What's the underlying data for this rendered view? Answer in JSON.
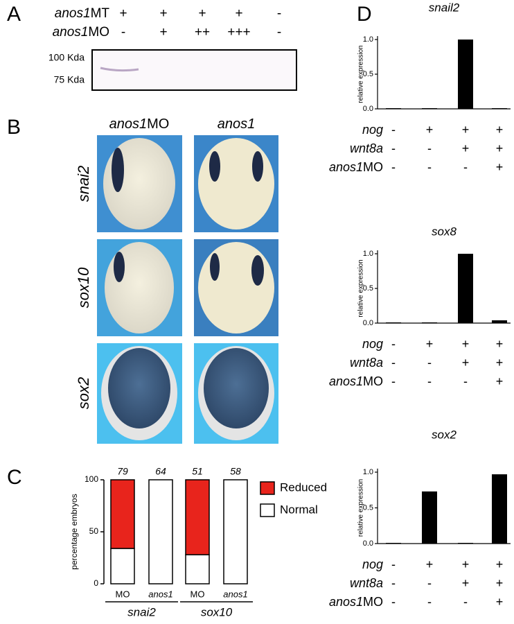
{
  "panel_a": {
    "label": "A",
    "rows": [
      {
        "name": {
          "italic": "anos1",
          "plain": "MT"
        },
        "marks": [
          "+",
          "+",
          "+",
          "+",
          "-"
        ]
      },
      {
        "name": {
          "italic": "anos1",
          "plain": "MO"
        },
        "marks": [
          "-",
          "+",
          "++",
          "+++",
          "-"
        ]
      }
    ],
    "blot_markers": [
      "100 Kda",
      "75 Kda"
    ]
  },
  "panel_b": {
    "label": "B",
    "columns": [
      {
        "italic": "anos1",
        "plain": "MO"
      },
      {
        "italic": "anos1"
      }
    ],
    "rows": [
      "snai2",
      "sox10",
      "sox2"
    ]
  },
  "chart_data": [
    {
      "type": "bar",
      "stacked": true,
      "panel_label": "C",
      "ylabel": "percentage embryos",
      "categories": [
        "MO",
        "anos1",
        "MO",
        "anos1"
      ],
      "groups": [
        "snai2",
        "sox10"
      ],
      "counts": [
        79,
        64,
        51,
        58
      ],
      "series": [
        {
          "name": "Normal",
          "color": "#ffffff",
          "values": [
            34,
            100,
            28,
            100
          ]
        },
        {
          "name": "Reduced",
          "color": "#e8241c",
          "values": [
            66,
            0,
            72,
            0
          ]
        }
      ],
      "ylim": [
        0,
        100
      ],
      "yticks": [
        0,
        50,
        100
      ]
    },
    {
      "type": "bar",
      "panel_label": "D",
      "title": "snail2",
      "ylabel": "relative expression",
      "values": [
        0.01,
        0.01,
        1.0,
        0.01
      ],
      "color": "#000000",
      "ylim": [
        0,
        1.05
      ],
      "yticks": [
        {
          "value": 0,
          "label": "0.0"
        },
        {
          "value": 0.5,
          "label": "0.5"
        },
        {
          "value": 1,
          "label": "1.0"
        }
      ],
      "conditions": [
        {
          "name": {
            "italic": "nog"
          },
          "marks": [
            "-",
            "+",
            "+",
            "+"
          ]
        },
        {
          "name": {
            "italic": "wnt8a"
          },
          "marks": [
            "-",
            "-",
            "+",
            "+"
          ]
        },
        {
          "name": {
            "italic": "anos1",
            "plain": "MO"
          },
          "marks": [
            "-",
            "-",
            "-",
            "+"
          ]
        }
      ]
    },
    {
      "type": "bar",
      "title": "sox8",
      "ylabel": "relative expression",
      "values": [
        0.01,
        0.01,
        1.0,
        0.04
      ],
      "color": "#000000",
      "ylim": [
        0,
        1.05
      ],
      "yticks": [
        {
          "value": 0,
          "label": "0.0"
        },
        {
          "value": 0.5,
          "label": "0.5"
        },
        {
          "value": 1,
          "label": "1.0"
        }
      ],
      "conditions": [
        {
          "name": {
            "italic": "nog"
          },
          "marks": [
            "-",
            "+",
            "+",
            "+"
          ]
        },
        {
          "name": {
            "italic": "wnt8a"
          },
          "marks": [
            "-",
            "-",
            "+",
            "+"
          ]
        },
        {
          "name": {
            "italic": "anos1",
            "plain": "MO"
          },
          "marks": [
            "-",
            "-",
            "-",
            "+"
          ]
        }
      ]
    },
    {
      "type": "bar",
      "title": "sox2",
      "ylabel": "relative expression",
      "values": [
        0.01,
        0.73,
        0.01,
        0.97
      ],
      "color": "#000000",
      "ylim": [
        0,
        1.05
      ],
      "yticks": [
        {
          "value": 0,
          "label": "0.0"
        },
        {
          "value": 0.5,
          "label": "0.5"
        },
        {
          "value": 1,
          "label": "1.0"
        }
      ],
      "conditions": [
        {
          "name": {
            "italic": "nog"
          },
          "marks": [
            "-",
            "+",
            "+",
            "+"
          ]
        },
        {
          "name": {
            "italic": "wnt8a"
          },
          "marks": [
            "-",
            "-",
            "+",
            "+"
          ]
        },
        {
          "name": {
            "italic": "anos1",
            "plain": "MO"
          },
          "marks": [
            "-",
            "-",
            "-",
            "+"
          ]
        }
      ]
    }
  ]
}
